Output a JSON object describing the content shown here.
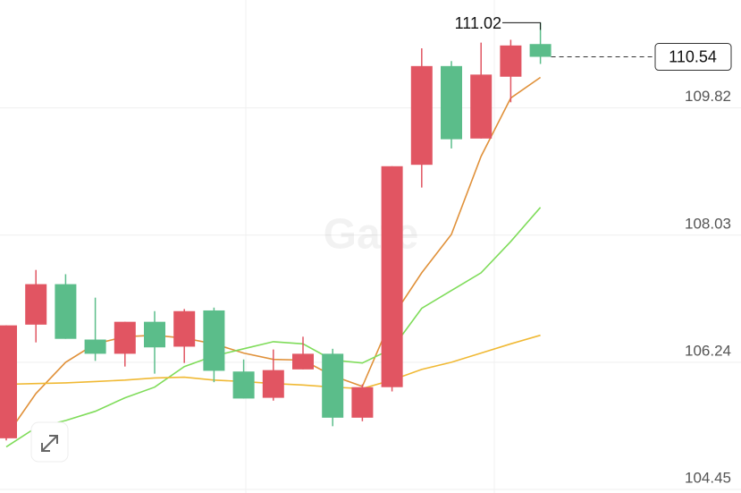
{
  "chart_data": {
    "type": "candlestick",
    "watermark": "Gate",
    "up_color": "#e15562",
    "down_color": "#5bbd8a",
    "open": [
      105.17,
      106.77,
      107.34,
      106.56,
      106.36,
      106.81,
      106.46,
      106.97,
      106.11,
      105.74,
      106.14,
      106.36,
      105.46,
      105.89,
      109.02,
      110.41,
      109.39,
      110.26,
      110.72
    ],
    "high": [
      106.76,
      107.54,
      107.48,
      107.15,
      106.81,
      106.96,
      106.99,
      107.01,
      106.28,
      106.42,
      106.6,
      106.43,
      105.93,
      109.0,
      110.66,
      110.48,
      110.74,
      110.78,
      111.02
    ],
    "low": [
      105.14,
      106.52,
      106.57,
      106.26,
      106.18,
      106.08,
      106.23,
      105.96,
      105.73,
      105.7,
      106.14,
      105.34,
      105.41,
      105.83,
      108.7,
      109.25,
      109.39,
      109.9,
      110.44
    ],
    "close": [
      106.76,
      107.34,
      106.57,
      106.36,
      106.81,
      106.45,
      106.96,
      106.12,
      105.73,
      106.13,
      106.36,
      105.46,
      105.89,
      109.0,
      110.41,
      109.38,
      110.29,
      110.7,
      110.54
    ],
    "ma": [
      {
        "color": "#e0913a",
        "values": [
          105.2,
          105.8,
          106.24,
          106.5,
          106.6,
          106.62,
          106.58,
          106.5,
          106.37,
          106.28,
          106.27,
          106.05,
          105.9,
          106.87,
          107.5,
          108.04,
          109.14,
          109.96,
          110.25
        ]
      },
      {
        "color": "#7fdc5a",
        "values": [
          105.05,
          105.32,
          105.42,
          105.55,
          105.74,
          105.89,
          106.18,
          106.33,
          106.43,
          106.53,
          106.5,
          106.27,
          106.23,
          106.43,
          107.0,
          107.25,
          107.5,
          107.94,
          108.42
        ]
      },
      {
        "color": "#f0b934",
        "values": [
          105.93,
          105.94,
          105.95,
          105.97,
          105.99,
          106.02,
          106.03,
          105.99,
          105.97,
          105.94,
          105.92,
          105.89,
          105.87,
          105.99,
          106.14,
          106.24,
          106.37,
          106.5,
          106.62
        ]
      }
    ],
    "ylim": [
      104.4,
      111.34
    ],
    "yticks": [
      104.45,
      106.24,
      108.03,
      109.82
    ],
    "grid": true
  }
}
